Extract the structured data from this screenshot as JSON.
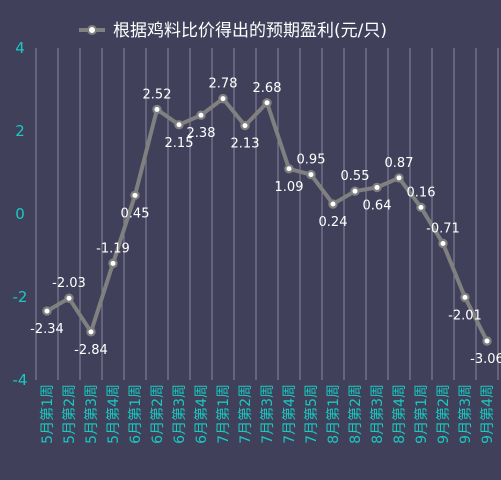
{
  "chart_data": {
    "type": "line",
    "categories": [
      "5月第1周",
      "5月第2周",
      "5月第3周",
      "5月第4周",
      "6月第1周",
      "6月第2周",
      "6月第3周",
      "6月第4周",
      "7月第1周",
      "7月第2周",
      "7月第3周",
      "7月第4周",
      "7月第5周",
      "8月第1周",
      "8月第2周",
      "8月第3周",
      "8月第4周",
      "9月第1周",
      "9月第2周",
      "9月第3周",
      "9月第4周"
    ],
    "series": [
      {
        "name": "根据鸡料比价得出的预期盈利(元/只)",
        "values": [
          -2.34,
          -2.03,
          -2.84,
          -1.19,
          0.45,
          2.52,
          2.15,
          2.38,
          2.78,
          2.13,
          2.68,
          1.09,
          0.95,
          0.24,
          0.55,
          0.64,
          0.87,
          0.16,
          -0.71,
          -2.01,
          -3.06
        ]
      }
    ],
    "data_labels": [
      "-2.34",
      "-2.03",
      "-2.84",
      "-1.19",
      "0.45",
      "2.52",
      "2.15",
      "2.38",
      "2.78",
      "2.13",
      "2.68",
      "1.09",
      "0.95",
      "0.24",
      "0.55",
      "0.64",
      "0.87",
      "0.16",
      "-0.71",
      "-2.01",
      "-3.06"
    ],
    "yticks": [
      "4",
      "2",
      "0",
      "-2",
      "-4"
    ],
    "ylim": [
      -4,
      4
    ],
    "legend_position": "top",
    "grid": "vertical",
    "colors": {
      "background": "#40405a",
      "line": "#808080",
      "marker_fill": "#ffffff",
      "tick_text": "#19c9c0",
      "label_text": "#ffffff",
      "grid": "#9a9ab0"
    }
  }
}
